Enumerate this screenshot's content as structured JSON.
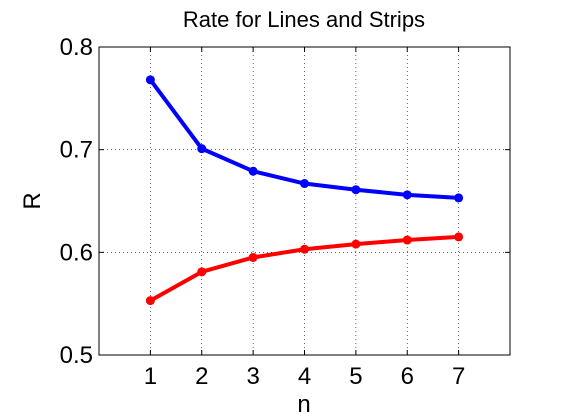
{
  "chart_data": {
    "type": "line",
    "title": "Rate for Lines and Strips",
    "xlabel": "n",
    "ylabel": "R",
    "xlim": [
      0,
      8
    ],
    "ylim": [
      0.5,
      0.8
    ],
    "xticks": [
      1,
      2,
      3,
      4,
      5,
      6,
      7
    ],
    "xtick_labels": [
      "1",
      "2",
      "3",
      "4",
      "5",
      "6",
      "7"
    ],
    "yticks": [
      0.5,
      0.6,
      0.7,
      0.8
    ],
    "ytick_labels": [
      "0.5",
      "0.6",
      "0.7",
      "0.8"
    ],
    "grid": true,
    "x": [
      1,
      2,
      3,
      4,
      5,
      6,
      7
    ],
    "series": [
      {
        "color": "#0000ff",
        "values": [
          0.768,
          0.701,
          0.679,
          0.667,
          0.661,
          0.656,
          0.653
        ]
      },
      {
        "color": "#ff0000",
        "values": [
          0.553,
          0.581,
          0.595,
          0.603,
          0.608,
          0.612,
          0.615
        ]
      }
    ]
  }
}
